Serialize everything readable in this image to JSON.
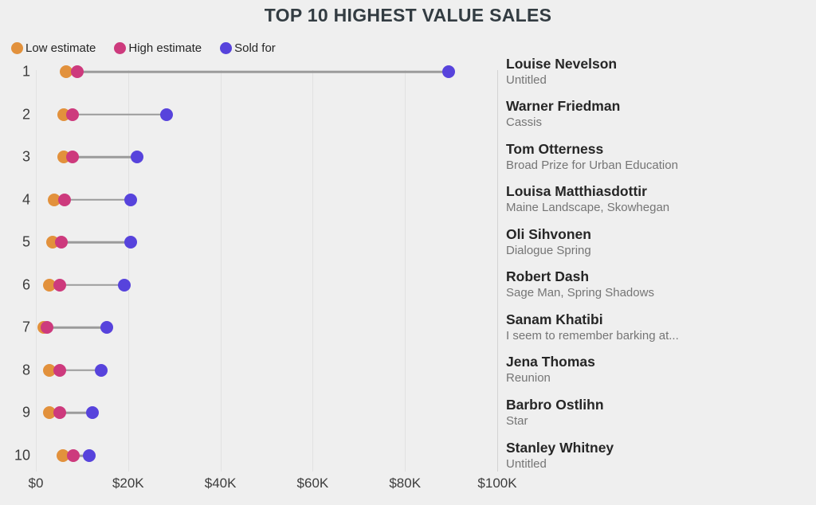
{
  "title": "TOP 10 HIGHEST VALUE SALES",
  "colors": {
    "background": "#efefef",
    "low": "#e2913c",
    "high": "#cd3a7d",
    "sold": "#5743dc",
    "connector": "#9b9b9b",
    "gridline": "#e2e2e2",
    "title_text": "#333c42",
    "axis_text": "#3c3c3c",
    "artist_text": "#262626",
    "artwork_text": "#757575"
  },
  "legend": {
    "items": [
      {
        "label": "Low estimate",
        "color_key": "low"
      },
      {
        "label": "High estimate",
        "color_key": "high"
      },
      {
        "label": "Sold for",
        "color_key": "sold"
      }
    ]
  },
  "chart_data": {
    "type": "scatter",
    "subtype": "dumbbell-dot-plot",
    "title": "TOP 10 HIGHEST VALUE SALES",
    "xlabel": "",
    "ylabel": "rank",
    "xlim": [
      0,
      100000
    ],
    "grid": "vertical",
    "legend_position": "top-left",
    "x_ticks": [
      {
        "value": 0,
        "label": "$0"
      },
      {
        "value": 20000,
        "label": "$20K"
      },
      {
        "value": 40000,
        "label": "$40K"
      },
      {
        "value": 60000,
        "label": "$60K"
      },
      {
        "value": 80000,
        "label": "$80K"
      },
      {
        "value": 100000,
        "label": "$100K"
      }
    ],
    "categories": [
      "1",
      "2",
      "3",
      "4",
      "5",
      "6",
      "7",
      "8",
      "9",
      "10"
    ],
    "series": [
      {
        "name": "Low estimate",
        "values": [
          6500,
          6000,
          6000,
          4000,
          3600,
          3000,
          1700,
          3000,
          3000,
          5900
        ]
      },
      {
        "name": "High estimate",
        "values": [
          9000,
          8000,
          8000,
          6200,
          5600,
          5100,
          2400,
          5100,
          5100,
          8100
        ]
      },
      {
        "name": "Sold for",
        "values": [
          89500,
          28300,
          21900,
          20500,
          20500,
          19200,
          15400,
          14100,
          12300,
          11600
        ]
      }
    ],
    "rows": [
      {
        "rank": "1",
        "artist": "Louise Nevelson",
        "artwork": "Untitled",
        "low": 6500,
        "high": 9000,
        "sold": 89500
      },
      {
        "rank": "2",
        "artist": "Warner Friedman",
        "artwork": "Cassis",
        "low": 6000,
        "high": 8000,
        "sold": 28300
      },
      {
        "rank": "3",
        "artist": "Tom Otterness",
        "artwork": "Broad Prize for Urban Education",
        "low": 6000,
        "high": 8000,
        "sold": 21900
      },
      {
        "rank": "4",
        "artist": "Louisa Matthiasdottir",
        "artwork": "Maine Landscape, Skowhegan",
        "low": 4000,
        "high": 6200,
        "sold": 20500
      },
      {
        "rank": "5",
        "artist": "Oli Sihvonen",
        "artwork": "Dialogue Spring",
        "low": 3600,
        "high": 5600,
        "sold": 20500
      },
      {
        "rank": "6",
        "artist": "Robert Dash",
        "artwork": "Sage Man, Spring Shadows",
        "low": 3000,
        "high": 5100,
        "sold": 19200
      },
      {
        "rank": "7",
        "artist": "Sanam Khatibi",
        "artwork": "I seem to remember barking at...",
        "low": 1700,
        "high": 2400,
        "sold": 15400
      },
      {
        "rank": "8",
        "artist": "Jena Thomas",
        "artwork": "Reunion",
        "low": 3000,
        "high": 5100,
        "sold": 14100
      },
      {
        "rank": "9",
        "artist": "Barbro Ostlihn",
        "artwork": "Star",
        "low": 3000,
        "high": 5100,
        "sold": 12300
      },
      {
        "rank": "10",
        "artist": "Stanley Whitney",
        "artwork": "Untitled",
        "low": 5900,
        "high": 8100,
        "sold": 11600
      }
    ]
  }
}
